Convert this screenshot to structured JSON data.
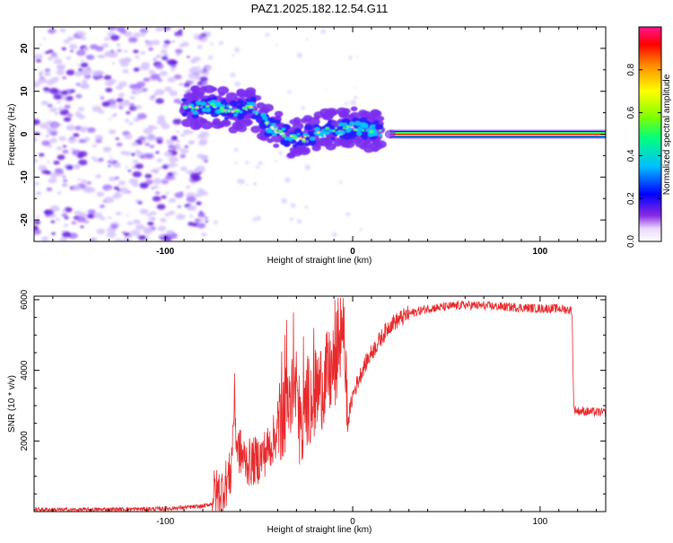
{
  "title": "PAZ1.2025.182.12.54.G11",
  "colors": {
    "snr_line": "#e8292b",
    "band": [
      "#ff0000",
      "#ffa500",
      "#ffff00",
      "#00ff00",
      "#00ffff",
      "#0000ff",
      "#5500ff",
      "#8f5aff",
      "#c8a8ff"
    ],
    "colorbar": [
      "#e8e0ff",
      "#8a2be2",
      "#0000ff",
      "#00bfff",
      "#00ff7f",
      "#7fff00",
      "#ffff00",
      "#ff8c00",
      "#ff0000",
      "#ff1493"
    ]
  },
  "chart_data": [
    {
      "type": "heatmap",
      "xlabel": "Height of straight line (km)",
      "ylabel": "Frequency (Hz)",
      "xlim": [
        -170,
        135
      ],
      "ylim": [
        -25,
        25
      ],
      "xticks": [
        "-100",
        "0",
        "100"
      ],
      "xtick_values": [
        -100,
        0,
        100
      ],
      "yticks": [
        "-20",
        "-10",
        "0",
        "10",
        "20"
      ],
      "ytick_values": [
        -20,
        -10,
        0,
        10,
        20
      ],
      "colorbar": {
        "label": "Normalized spectral amplitude",
        "ticks": [
          "0.0",
          "0.2",
          "0.4",
          "0.6",
          "0.8"
        ],
        "tick_values": [
          0.0,
          0.2,
          0.4,
          0.6,
          0.8
        ],
        "range": [
          0,
          1
        ]
      },
      "features": {
        "noise_region_x": [
          -170,
          -85
        ],
        "track_points": [
          [
            -90,
            6
          ],
          [
            -75,
            6.5
          ],
          [
            -62,
            5
          ],
          [
            -55,
            7
          ],
          [
            -45,
            2
          ],
          [
            -35,
            -0.5
          ],
          [
            -26,
            -1
          ],
          [
            -20,
            0.5
          ],
          [
            -12,
            1
          ],
          [
            0,
            1.5
          ],
          [
            8,
            1
          ],
          [
            15,
            0.8
          ]
        ],
        "carrier_start_x": 20,
        "carrier_frequency": 0
      }
    },
    {
      "type": "line",
      "xlabel": "Height of straight line (km)",
      "ylabel": "SNR (10 * v/v)",
      "xlim": [
        -170,
        135
      ],
      "ylim": [
        0,
        6100
      ],
      "xticks": [
        "-100",
        "0",
        "100"
      ],
      "xtick_values": [
        -100,
        0,
        100
      ],
      "yticks": [
        "2000",
        "4000",
        "6000"
      ],
      "ytick_values": [
        2000,
        4000,
        6000
      ],
      "series": [
        {
          "values_x": [
            -170,
            -150,
            -120,
            -100,
            -80,
            -70,
            -65,
            -63,
            -62,
            -58,
            -55,
            -50,
            -45,
            -40,
            -35,
            -30,
            -27,
            -25,
            -20,
            -15,
            -10,
            -7,
            -5,
            -3,
            0,
            5,
            10,
            20,
            30,
            40,
            50,
            60,
            80,
            100,
            110,
            117,
            118,
            120,
            135
          ],
          "values_y": [
            60,
            50,
            70,
            80,
            150,
            300,
            800,
            3000,
            1600,
            1200,
            1100,
            1200,
            1500,
            2000,
            2500,
            3000,
            1200,
            2600,
            2800,
            3200,
            3500,
            4200,
            4900,
            2400,
            3300,
            4000,
            4500,
            5300,
            5600,
            5750,
            5800,
            5850,
            5800,
            5750,
            5750,
            5700,
            2900,
            2850,
            2800
          ]
        }
      ]
    }
  ]
}
